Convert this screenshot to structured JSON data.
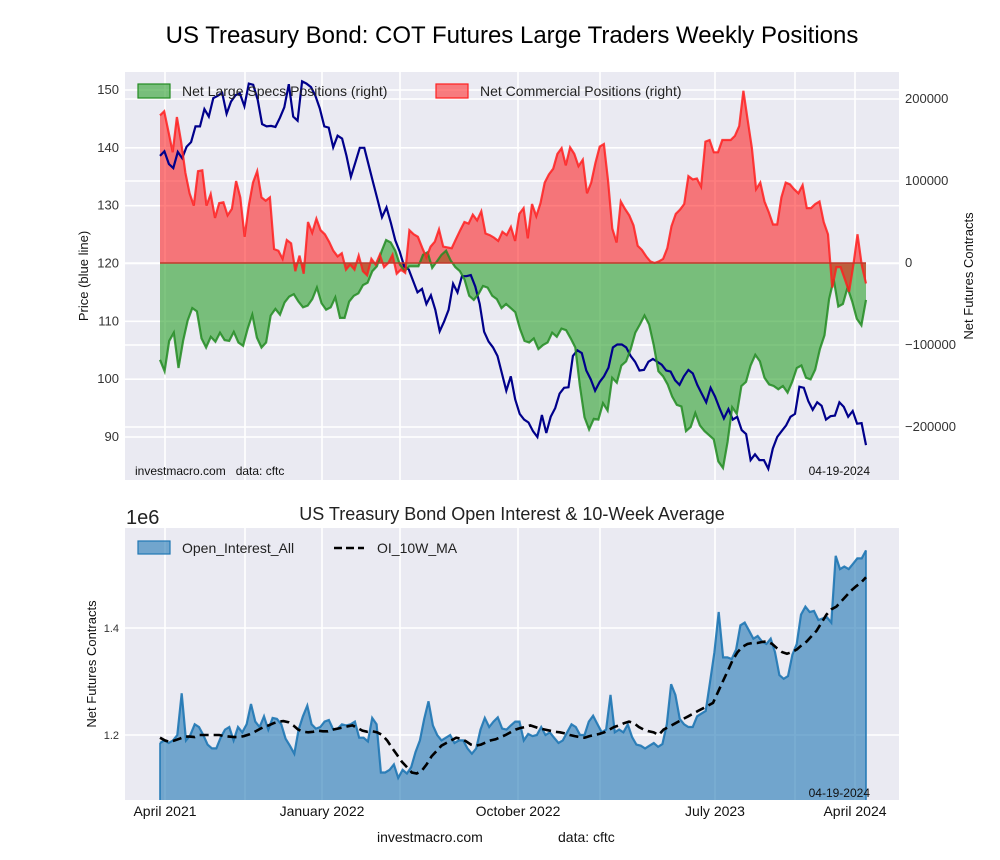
{
  "title": "US Treasury Bond: COT Futures Large Traders Weekly Positions",
  "chart_data": [
    {
      "type": "line",
      "title": "US Treasury Bond: COT Futures Large Traders Weekly Positions",
      "ylabel": "Price (blue line)",
      "y2label": "Net Futures Contracts",
      "ylim": [
        84,
        153
      ],
      "y2lim": [
        -256000,
        240000
      ],
      "yticks": [
        "90",
        "100",
        "110",
        "120",
        "130",
        "140",
        "150"
      ],
      "y2ticks": [
        "−200000",
        "−100000",
        "0",
        "100000",
        "200000"
      ],
      "grid": true,
      "legend_position": "top",
      "legend": [
        "Net Large Specs Positions (right)",
        "Net Commercial Positions (right)"
      ],
      "annotation_left": "investmacro.com   data: cftc",
      "annotation_right": "04-19-2024",
      "x_start": "2021-04",
      "x_end": "2024-04-19",
      "series": [
        {
          "name": "Price",
          "color": "#00008b",
          "axis": "left",
          "values": [
            138.6,
            139.4,
            137.2,
            136.5,
            139.3,
            138.2,
            140.2,
            141.0,
            143.7,
            143.7,
            146.7,
            145.4,
            148.6,
            149.0,
            149.5,
            145.9,
            148.0,
            149.1,
            149.4,
            147.2,
            151.1,
            150.9,
            148.3,
            144.1,
            143.7,
            143.8,
            143.6,
            145.2,
            147.0,
            151.0,
            145.4,
            144.7,
            151.5,
            151.1,
            150.5,
            149.0,
            146.8,
            143.7,
            143.5,
            140.1,
            142.1,
            141.6,
            138.6,
            135.0,
            137.5,
            140.0,
            140.0,
            137.0,
            134.0,
            131.0,
            128.0,
            129.7,
            127.0,
            124.0,
            122.0,
            119.5,
            119.0,
            117.0,
            115.0,
            115.6,
            113.0,
            114.5,
            112.0,
            108.3,
            110.0,
            112.0,
            116.5,
            115.0,
            117.8,
            117.8,
            118.0,
            116.0,
            113.0,
            108.2,
            106.5,
            105.5,
            104.0,
            101.0,
            98.0,
            100.5,
            96.5,
            94.0,
            93.0,
            92.5,
            91.0,
            90.0,
            93.8,
            90.7,
            93.5,
            95.0,
            97.5,
            98.5,
            98.6,
            104.0,
            105.0,
            104.5,
            101.5,
            100.0,
            98.0,
            99.5,
            100.5,
            102.0,
            105.5,
            106.0,
            106.0,
            105.5,
            104.0,
            103.0,
            101.5,
            101.6,
            103.0,
            103.5,
            103.0,
            102.5,
            101.5,
            101.3,
            99.8,
            99.0,
            100.5,
            101.6,
            101.0,
            99.0,
            97.5,
            96.0,
            98.5,
            97.0,
            95.0,
            93.2,
            94.8,
            93.0,
            93.5,
            91.2,
            90.5,
            86.0,
            87.0,
            86.0,
            86.0,
            84.5,
            88.0,
            90.0,
            91.0,
            92.0,
            93.5,
            94.0,
            98.7,
            98.5,
            96.2,
            94.7,
            96.0,
            95.4,
            93.0,
            93.6,
            93.7,
            96.0,
            95.2,
            93.5,
            94.5,
            92.3,
            92.4,
            88.6
          ]
        },
        {
          "name": "Net Large Specs Positions (right)",
          "color": "#228b22",
          "fill": "#2ca02c",
          "axis": "right",
          "values": [
            -118000,
            -132000,
            -95000,
            -85000,
            -128000,
            -95000,
            -70000,
            -55000,
            -59000,
            -92000,
            -103000,
            -90000,
            -96000,
            -85000,
            -94000,
            -95000,
            -84000,
            -97000,
            -101000,
            -80000,
            -63000,
            -91000,
            -103000,
            -97000,
            -64000,
            -56000,
            -63000,
            -48000,
            -41000,
            -38000,
            -47000,
            -54000,
            -52000,
            -44000,
            -30000,
            -49000,
            -57000,
            -54000,
            -42000,
            -67000,
            -67000,
            -47000,
            -40000,
            -37000,
            -27000,
            -24000,
            -10000,
            -4000,
            14000,
            28000,
            25000,
            15000,
            -2000,
            -10000,
            -4000,
            -4000,
            -4000,
            10000,
            13000,
            -6000,
            2000,
            10000,
            15000,
            3000,
            -5000,
            -10000,
            -20000,
            -40000,
            -45000,
            -38000,
            -28000,
            -30000,
            -40000,
            -44000,
            -55000,
            -50000,
            -55000,
            -60000,
            -80000,
            -95000,
            -97000,
            -92000,
            -105000,
            -100000,
            -97000,
            -85000,
            -90000,
            -80000,
            -82000,
            -92000,
            -103000,
            -150000,
            -188000,
            -203000,
            -190000,
            -191000,
            -171000,
            -180000,
            -140000,
            -146000,
            -125000,
            -120000,
            -105000,
            -85000,
            -75000,
            -64000,
            -75000,
            -100000,
            -132000,
            -138000,
            -148000,
            -163000,
            -173000,
            -175000,
            -205000,
            -200000,
            -183000,
            -198000,
            -205000,
            -210000,
            -215000,
            -242000,
            -250000,
            -218000,
            -176000,
            -184000,
            -150000,
            -145000,
            -125000,
            -112000,
            -120000,
            -140000,
            -148000,
            -150000,
            -154000,
            -150000,
            -158000,
            -145000,
            -128000,
            -125000,
            -140000,
            -142000,
            -130000,
            -105000,
            -88000,
            -44000,
            -20000,
            -53000,
            -50000,
            -30000,
            -47000,
            -68000,
            -76000,
            -45000
          ]
        },
        {
          "name": "Net Commercial Positions (right)",
          "color": "#ff2020",
          "fill": "#ff0000",
          "axis": "right",
          "values": [
            180000,
            185000,
            160000,
            135000,
            178000,
            148000,
            110000,
            85000,
            70000,
            112000,
            113000,
            70000,
            84000,
            55000,
            73000,
            74000,
            58000,
            66000,
            100000,
            80000,
            32000,
            70000,
            98000,
            112000,
            80000,
            76000,
            80000,
            17000,
            15000,
            5000,
            28000,
            24000,
            -10000,
            9000,
            -13000,
            50000,
            37000,
            54000,
            40000,
            35000,
            26000,
            15000,
            8000,
            12000,
            -8000,
            -2000,
            -8000,
            9000,
            -10000,
            -15000,
            5000,
            -2000,
            10000,
            -5000,
            0,
            10000,
            -13000,
            -8000,
            -12000,
            40000,
            35000,
            32000,
            19000,
            7000,
            20000,
            26000,
            41000,
            20000,
            19000,
            18000,
            29000,
            40000,
            50000,
            48000,
            59000,
            52000,
            63000,
            36000,
            34000,
            31000,
            27000,
            38000,
            34000,
            44000,
            27000,
            60000,
            67000,
            30000,
            72000,
            57000,
            73000,
            98000,
            108000,
            115000,
            133000,
            140000,
            119000,
            141000,
            133000,
            118000,
            126000,
            85000,
            98000,
            122000,
            142000,
            145000,
            100000,
            42000,
            25000,
            75000,
            66000,
            58000,
            46000,
            21000,
            16000,
            8000,
            2000,
            0,
            2000,
            5000,
            18000,
            45000,
            60000,
            65000,
            72000,
            106000,
            102000,
            103000,
            93000,
            148000,
            150000,
            135000,
            135000,
            150000,
            150000,
            150000,
            155000,
            167000,
            210000,
            175000,
            140000,
            90000,
            98000,
            75000,
            62000,
            47000,
            47000,
            80000,
            98000,
            96000,
            90000,
            85000,
            95000,
            67000,
            67000,
            72000,
            75000,
            50000,
            35000,
            -30000,
            -5000,
            -5000,
            -20000,
            -35000,
            -3000,
            35000,
            -3000,
            -25000
          ]
        }
      ]
    },
    {
      "type": "area",
      "title": "US Treasury Bond Open Interest & 10-Week Average",
      "ylabel": "Net Futures Contracts",
      "ylim_scale_label": "1e6",
      "ylim": [
        1.07,
        1.58
      ],
      "yticks": [
        "1.2",
        "1.4"
      ],
      "xticks": [
        "April 2021",
        "January 2022",
        "October 2022",
        "July 2023",
        "April 2024"
      ],
      "grid": true,
      "legend_position": "top-left",
      "legend": [
        "Open_Interest_All",
        "OI_10W_MA"
      ],
      "annotation_right": "04-19-2024",
      "footer_left": "investmacro.com",
      "footer_right": "data: cftc",
      "series": [
        {
          "name": "Open_Interest_All",
          "color": "#1f77b4",
          "values": [
            1.185,
            1.19,
            1.185,
            1.19,
            1.2,
            1.278,
            1.19,
            1.2,
            1.22,
            1.215,
            1.2,
            1.182,
            1.175,
            1.175,
            1.195,
            1.21,
            1.215,
            1.19,
            1.215,
            1.205,
            1.22,
            1.258,
            1.225,
            1.215,
            1.235,
            1.21,
            1.232,
            1.23,
            1.22,
            1.193,
            1.18,
            1.165,
            1.21,
            1.235,
            1.255,
            1.22,
            1.212,
            1.215,
            1.225,
            1.228,
            1.21,
            1.212,
            1.22,
            1.218,
            1.22,
            1.225,
            1.195,
            1.195,
            1.188,
            1.232,
            1.22,
            1.13,
            1.13,
            1.135,
            1.145,
            1.12,
            1.135,
            1.128,
            1.14,
            1.168,
            1.19,
            1.23,
            1.263,
            1.218,
            1.2,
            1.19,
            1.195,
            1.2,
            1.185,
            1.19,
            1.19,
            1.175,
            1.165,
            1.175,
            1.21,
            1.232,
            1.215,
            1.225,
            1.233,
            1.212,
            1.21,
            1.218,
            1.225,
            1.225,
            1.19,
            1.202,
            1.198,
            1.2,
            1.215,
            1.2,
            1.205,
            1.195,
            1.185,
            1.19,
            1.205,
            1.22,
            1.215,
            1.2,
            1.2,
            1.225,
            1.236,
            1.22,
            1.205,
            1.21,
            1.275,
            1.205,
            1.21,
            1.205,
            1.22,
            1.196,
            1.182,
            1.18,
            1.175,
            1.18,
            1.185,
            1.178,
            1.183,
            1.22,
            1.295,
            1.275,
            1.23,
            1.22,
            1.215,
            1.215,
            1.235,
            1.24,
            1.245,
            1.3,
            1.355,
            1.43,
            1.345,
            1.345,
            1.342,
            1.36,
            1.405,
            1.41,
            1.395,
            1.38,
            1.385,
            1.375,
            1.37,
            1.38,
            1.355,
            1.312,
            1.305,
            1.31,
            1.35,
            1.37,
            1.425,
            1.44,
            1.43,
            1.432,
            1.415,
            1.418,
            1.42,
            1.41,
            1.535,
            1.51,
            1.515,
            1.51,
            1.52,
            1.53,
            1.53,
            1.545
          ]
        },
        {
          "name": "OI_10W_MA",
          "color": "#000000",
          "style": "dashed",
          "values": [
            1.195,
            1.19,
            1.187,
            1.19,
            1.193,
            1.197,
            1.197,
            1.196,
            1.2,
            1.2,
            1.2,
            1.2,
            1.2,
            1.198,
            1.197,
            1.196,
            1.196,
            1.198,
            1.201,
            1.205,
            1.21,
            1.215,
            1.218,
            1.222,
            1.225,
            1.226,
            1.224,
            1.218,
            1.21,
            1.206,
            1.205,
            1.206,
            1.208,
            1.207,
            1.207,
            1.21,
            1.212,
            1.214,
            1.216,
            1.218,
            1.213,
            1.208,
            1.206,
            1.207,
            1.205,
            1.2,
            1.19,
            1.176,
            1.163,
            1.15,
            1.14,
            1.13,
            1.128,
            1.133,
            1.145,
            1.16,
            1.17,
            1.18,
            1.185,
            1.19,
            1.195,
            1.193,
            1.188,
            1.182,
            1.18,
            1.182,
            1.186,
            1.19,
            1.192,
            1.196,
            1.2,
            1.205,
            1.21,
            1.213,
            1.215,
            1.218,
            1.215,
            1.212,
            1.21,
            1.208,
            1.206,
            1.205,
            1.203,
            1.2,
            1.198,
            1.196,
            1.195,
            1.198,
            1.2,
            1.202,
            1.205,
            1.21,
            1.215,
            1.218,
            1.222,
            1.225,
            1.222,
            1.215,
            1.21,
            1.207,
            1.205,
            1.2,
            1.21,
            1.215,
            1.22,
            1.225,
            1.23,
            1.235,
            1.24,
            1.245,
            1.25,
            1.255,
            1.26,
            1.28,
            1.3,
            1.32,
            1.34,
            1.355,
            1.365,
            1.37,
            1.372,
            1.372,
            1.374,
            1.375,
            1.37,
            1.362,
            1.355,
            1.352,
            1.355,
            1.36,
            1.368,
            1.375,
            1.385,
            1.395,
            1.41,
            1.425,
            1.435,
            1.44,
            1.45,
            1.46,
            1.47,
            1.478,
            1.485,
            1.495
          ]
        }
      ]
    }
  ],
  "top_panel": {
    "ylabel_left": "Price (blue line)",
    "ylabel_right": "Net Futures Contracts",
    "watermark": "investmacro.com",
    "source": "data: cftc",
    "date": "04-19-2024"
  },
  "bottom_panel": {
    "title": "US Treasury Bond Open Interest & 10-Week Average",
    "scale": "1e6",
    "ylabel": "Net Futures Contracts",
    "date": "04-19-2024",
    "footer_site": "investmacro.com",
    "footer_source": "data: cftc"
  }
}
